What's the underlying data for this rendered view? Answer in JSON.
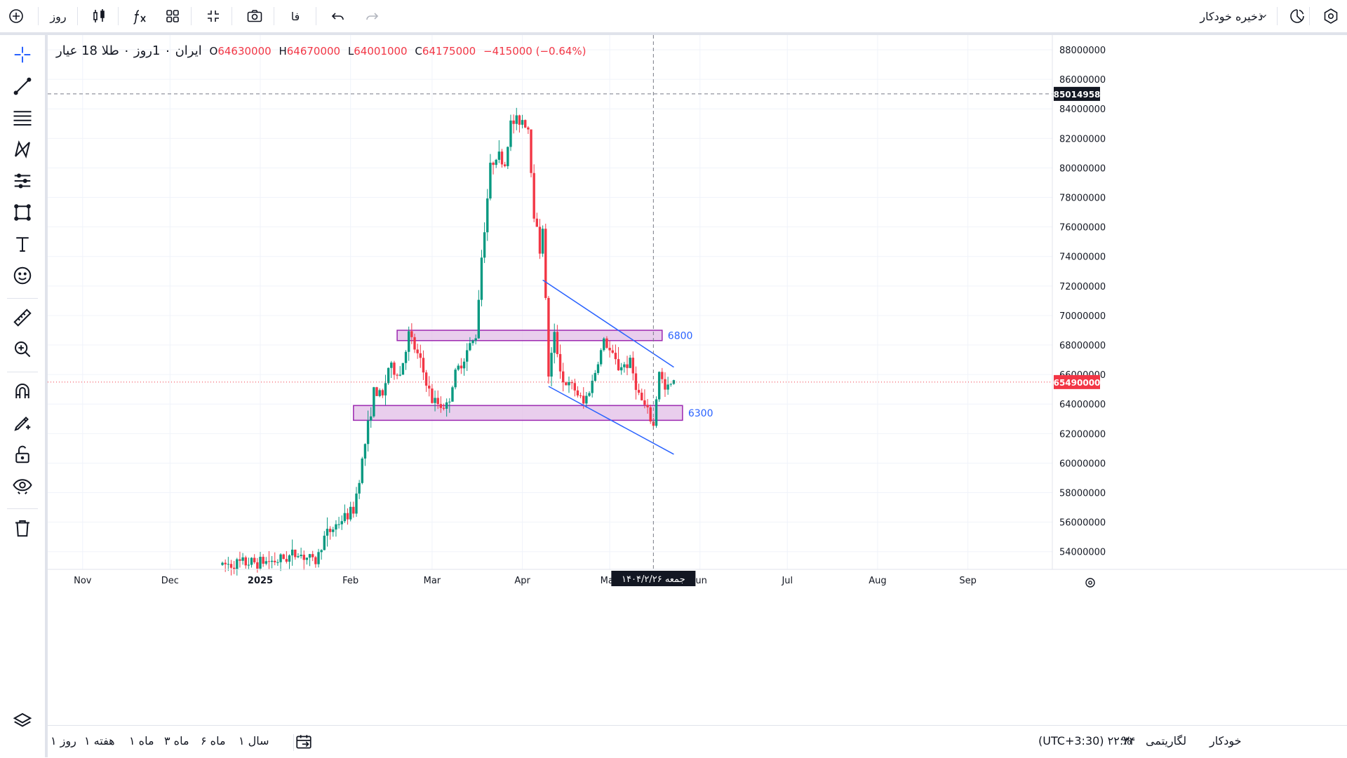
{
  "topbar": {
    "autosave_label": "ذخیره خودکار",
    "interval_label": "روز",
    "lang_label": "فا",
    "icons": [
      "settings-icon",
      "theme-toggle-icon",
      "chevron-down-icon",
      "redo-icon",
      "undo-icon",
      "snapshot-icon",
      "fullscreen-icon",
      "layout-icon",
      "indicators-icon",
      "candle-style-icon",
      "add-symbol-icon"
    ]
  },
  "legend": {
    "symbol": "ایران ۰ 1روز ۰ طلا 18 عیار",
    "o_label": "O",
    "o_value": "64630000",
    "h_label": "H",
    "h_value": "64670000",
    "l_label": "L",
    "l_value": "64001000",
    "c_label": "C",
    "c_value": "64175000",
    "change": "−415000 (−0.64%)"
  },
  "bottombar": {
    "ranges": [
      "سال ۱",
      "ماه ۶",
      "ماه ۳",
      "ماه ۱",
      "هفته ۱",
      "روز ۱"
    ],
    "time": "(UTC+3:30) ۲۲:۳۴",
    "percent_label": "%",
    "log_label": "لگاریتمی",
    "auto_label": "خودکار"
  },
  "colors": {
    "up": "#089981",
    "down": "#f23645",
    "zone_fill": "#e1bee7",
    "zone_border": "#9c27b0",
    "trendline": "#2962ff",
    "zone_label": "#2962ff"
  },
  "chart_data": {
    "type": "candlestick",
    "x_axis": {
      "labels": [
        "Nov",
        "Dec",
        "2025",
        "Feb",
        "Mar",
        "Apr",
        "May",
        "Jun",
        "Jul",
        "Aug",
        "Sep"
      ],
      "start": "2024-10-20",
      "end": "2025-09-30"
    },
    "y_axis": {
      "min": 52800000,
      "max": 89000000,
      "tick_step": 2000000,
      "ticks": [
        54000000,
        56000000,
        58000000,
        60000000,
        62000000,
        64000000,
        66000000,
        68000000,
        70000000,
        72000000,
        74000000,
        76000000,
        78000000,
        80000000,
        82000000,
        84000000,
        86000000,
        88000000
      ]
    },
    "crosshair": {
      "price_label": "85014958",
      "date_label": "جمعه ۱۴۰۴/۲/۲۶",
      "price": 85014958,
      "date": "2025-05-16"
    },
    "last_price": {
      "label": "65490000",
      "value": 65490000
    },
    "zones": [
      {
        "label": "6800",
        "top": 69000000,
        "bottom": 68300000,
        "from": "2025-02-17",
        "to": "2025-05-19"
      },
      {
        "label": "6300",
        "top": 63900000,
        "bottom": 62900000,
        "from": "2025-02-02",
        "to": "2025-05-26"
      }
    ],
    "trendlines": [
      {
        "from_date": "2025-04-08",
        "from_price": 72400000,
        "to_date": "2025-05-23",
        "to_price": 66500000
      },
      {
        "from_date": "2025-04-10",
        "from_price": 65200000,
        "to_date": "2025-05-23",
        "to_price": 60600000
      }
    ],
    "anchors": [
      [
        "2024-12-19",
        53100000
      ],
      [
        "2025-01-07",
        53400000
      ],
      [
        "2025-01-14",
        53900000
      ],
      [
        "2025-01-20",
        53300000
      ],
      [
        "2025-01-23",
        55000000
      ],
      [
        "2025-01-28",
        56000000
      ],
      [
        "2025-02-02",
        56800000
      ],
      [
        "2025-02-05",
        60200000
      ],
      [
        "2025-02-09",
        64800000
      ],
      [
        "2025-02-12",
        64500000
      ],
      [
        "2025-02-14",
        66500000
      ],
      [
        "2025-02-18",
        66000000
      ],
      [
        "2025-02-21",
        68700000
      ],
      [
        "2025-02-25",
        66800000
      ],
      [
        "2025-03-01",
        64200000
      ],
      [
        "2025-03-06",
        63800000
      ],
      [
        "2025-03-09",
        66000000
      ],
      [
        "2025-03-13",
        67600000
      ],
      [
        "2025-03-16",
        68600000
      ],
      [
        "2025-03-18",
        74000000
      ],
      [
        "2025-03-21",
        80000000
      ],
      [
        "2025-03-23",
        81000000
      ],
      [
        "2025-03-26",
        80200000
      ],
      [
        "2025-03-28",
        83000000
      ],
      [
        "2025-04-01",
        83300000
      ],
      [
        "2025-04-03",
        82700000
      ],
      [
        "2025-04-05",
        77000000
      ],
      [
        "2025-04-07",
        74500000
      ],
      [
        "2025-04-08",
        76000000
      ],
      [
        "2025-04-10",
        66000000
      ],
      [
        "2025-04-12",
        68600000
      ],
      [
        "2025-04-15",
        65500000
      ],
      [
        "2025-04-19",
        65000000
      ],
      [
        "2025-04-22",
        64000000
      ],
      [
        "2025-04-25",
        65500000
      ],
      [
        "2025-04-29",
        68300000
      ],
      [
        "2025-05-04",
        66500000
      ],
      [
        "2025-05-08",
        66800000
      ],
      [
        "2025-05-11",
        64600000
      ],
      [
        "2025-05-14",
        63400000
      ],
      [
        "2025-05-16",
        62500000
      ],
      [
        "2025-05-18",
        66300000
      ],
      [
        "2025-05-20",
        64900000
      ],
      [
        "2025-05-23",
        65490000
      ]
    ]
  }
}
